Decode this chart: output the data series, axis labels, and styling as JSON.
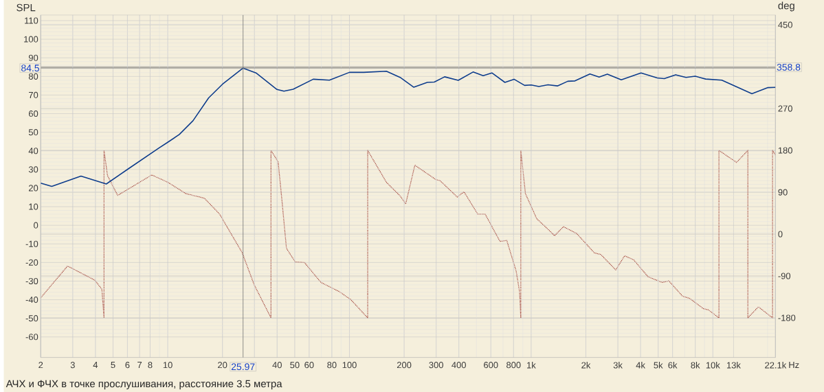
{
  "chart_data": {
    "type": "line",
    "annotations": [
      "АЧХ и ФЧХ в точке прослушивания, расстояние 3.5 метра"
    ],
    "ylabel": "SPL",
    "y2label": "deg",
    "log": "x",
    "grid": true,
    "xlim": [
      2,
      22100
    ],
    "ylim": [
      -71,
      113
    ],
    "y2lim": [
      -265,
      471
    ],
    "xticks": [
      2,
      3,
      4,
      5,
      6,
      7,
      8,
      10,
      20,
      {
        "value": 30,
        "label": null
      },
      40,
      50,
      60,
      80,
      100,
      200,
      300,
      400,
      600,
      800,
      {
        "value": 1000,
        "label": "1k"
      },
      {
        "value": 2000,
        "label": "2k"
      },
      {
        "value": 3000,
        "label": "3k"
      },
      {
        "value": 4000,
        "label": "4k"
      },
      {
        "value": 5000,
        "label": "5k"
      },
      {
        "value": 6000,
        "label": "6k"
      },
      {
        "value": 8000,
        "label": "8k"
      },
      {
        "value": 10000,
        "label": "10k"
      },
      {
        "value": 13000,
        "label": "13k"
      },
      {
        "value": 22100,
        "label": "22.1k"
      }
    ],
    "xlabel": "Hz",
    "yticks": [
      110,
      100,
      90,
      80,
      70,
      60,
      50,
      40,
      30,
      20,
      10,
      0,
      -10,
      -20,
      -30,
      -40,
      -50,
      -60
    ],
    "y2ticks": [
      450,
      {
        "value": 360,
        "label": null
      },
      270,
      180,
      90,
      0,
      -90,
      -180
    ],
    "ref_lines": [
      {
        "axis": "x",
        "value": 25.97,
        "label": "25.97"
      },
      {
        "axis": "y",
        "value": 84.5,
        "label": "84.5"
      },
      {
        "axis": "y2",
        "value": 358.8,
        "label": "358.8"
      }
    ],
    "series": [
      {
        "color": "#0d3c8c",
        "line_style": "solid",
        "x": [
          2,
          2.3,
          3.33,
          4.59,
          6.1,
          8.94,
          10,
          11.58,
          13.77,
          16.8,
          20,
          25.97,
          30.6,
          39.9,
          43.6,
          49,
          63.2,
          77.6,
          100,
          119.8,
          159.7,
          190,
          226,
          268,
          293,
          334,
          397,
          479,
          544,
          608,
          717,
          805,
          920,
          1000,
          1103,
          1238,
          1395,
          1590,
          1742,
          2106,
          2366,
          2625,
          3133,
          4023,
          4940,
          5402,
          6240,
          7115,
          8000,
          9125,
          11200,
          16400,
          20100,
          22100
        ],
        "values": [
          22.7,
          20.9,
          26.4,
          22.2,
          30.5,
          41.5,
          44.6,
          48.8,
          56.2,
          68.5,
          75.8,
          84.5,
          81.9,
          73,
          72.1,
          73.1,
          78.5,
          78,
          82.2,
          82.2,
          82.8,
          79.5,
          74.2,
          76.8,
          77,
          79.8,
          77.9,
          82.4,
          80.4,
          81.9,
          76.8,
          78.5,
          75.2,
          75.4,
          74.6,
          75.5,
          74.9,
          77.4,
          77.6,
          81.3,
          79.7,
          81.2,
          78.2,
          81.9,
          79.2,
          78.8,
          80.9,
          79.5,
          80.1,
          78.6,
          78,
          70.7,
          74,
          74.1
        ]
      },
      {
        "color": "#a3473f",
        "line_style": "dotted",
        "axis": "y2",
        "x": [
          2,
          2.81,
          3.97,
          4.34,
          4.46,
          4.46,
          4.66,
          5.3,
          8.17,
          10,
          12.6,
          15.9,
          19.3,
          25.7,
          29.9,
          37,
          37,
          40.5,
          42.4,
          45,
          50.3,
          56.6,
          69.7,
          87.8,
          101.6,
          126,
          126,
          159.7,
          190,
          204,
          229,
          301,
          314,
          392,
          427,
          508,
          558,
          674,
          734,
          827,
          863,
          877,
          877,
          930,
          1073,
          1270,
          1345,
          1505,
          1781,
          2226,
          2422,
          2920,
          3268,
          3660,
          4400,
          5260,
          5720,
          6810,
          7450,
          8880,
          9430,
          10800,
          10800,
          13500,
          15580,
          15580,
          17800,
          21300,
          21300,
          22100
        ],
        "values": [
          -137,
          -68.6,
          -99,
          -118.5,
          -180,
          180,
          126,
          83.2,
          127.2,
          111.5,
          87,
          77.3,
          43,
          -40.2,
          -108.9,
          -180,
          180,
          155.6,
          77.3,
          -30.4,
          -59.8,
          -61.2,
          -103.9,
          -123.5,
          -140.6,
          -180,
          180,
          111.5,
          82.2,
          65,
          148.2,
          116.5,
          115.5,
          79.8,
          91,
          43,
          43,
          -15.7,
          -13.5,
          -79.5,
          -123.5,
          -180,
          180,
          87,
          33.2,
          6.3,
          -3.5,
          16,
          1.3,
          -40.2,
          -44,
          -77,
          -46.6,
          -55,
          -91.7,
          -103.9,
          -100.5,
          -133.3,
          -138.2,
          -160.3,
          -162.6,
          -180,
          180,
          154.1,
          180,
          -180,
          -156.3,
          -180,
          180,
          170.3
        ]
      }
    ]
  }
}
